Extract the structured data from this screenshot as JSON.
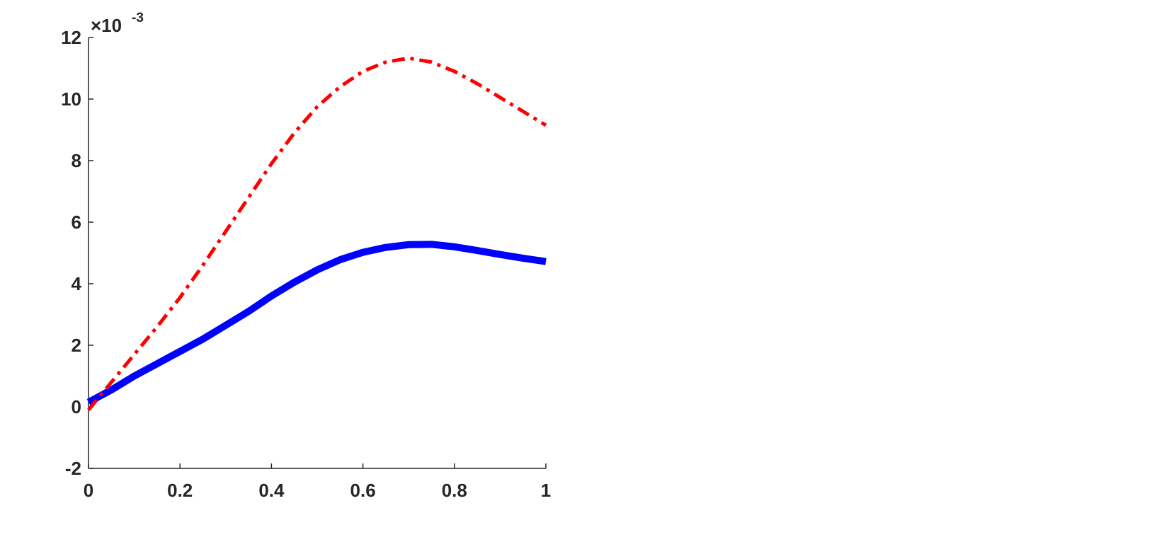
{
  "chart_data": {
    "type": "line",
    "x": [
      0,
      0.05,
      0.1,
      0.15,
      0.2,
      0.25,
      0.3,
      0.35,
      0.4,
      0.45,
      0.5,
      0.55,
      0.6,
      0.65,
      0.7,
      0.75,
      0.8,
      0.85,
      0.9,
      0.95,
      1
    ],
    "series": [
      {
        "color": "#0000ff",
        "line_style": "solid",
        "values": [
          0.15,
          0.55,
          1.0,
          1.4,
          1.8,
          2.2,
          2.65,
          3.1,
          3.6,
          4.05,
          4.45,
          4.78,
          5.02,
          5.18,
          5.27,
          5.28,
          5.2,
          5.08,
          4.95,
          4.83,
          4.72
        ]
      },
      {
        "color": "#ff0000",
        "line_style": "dashdot",
        "values": [
          -0.1,
          0.8,
          1.7,
          2.6,
          3.55,
          4.6,
          5.7,
          6.8,
          7.9,
          8.9,
          9.75,
          10.4,
          10.9,
          11.2,
          11.33,
          11.2,
          10.9,
          10.5,
          10.05,
          9.6,
          9.15
        ]
      }
    ],
    "xlim": [
      0,
      1
    ],
    "xticks": [
      0,
      0.2,
      0.4,
      0.6,
      0.8,
      1
    ],
    "ylim": [
      -2,
      12
    ],
    "yticks": [
      -2,
      0,
      2,
      4,
      6,
      8,
      10,
      12
    ],
    "y_multiplier": "×10",
    "y_multiplier_power": "-3",
    "grid": false
  }
}
